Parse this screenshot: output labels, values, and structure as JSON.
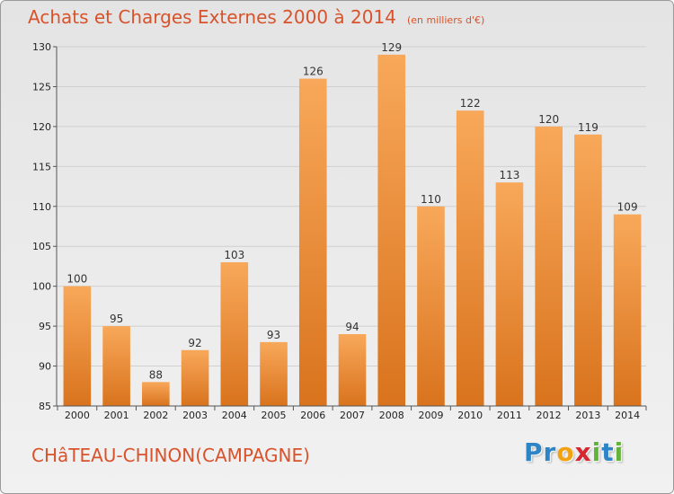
{
  "title": "Achats et Charges Externes 2000 à 2014",
  "unit": "(en milliers d'€)",
  "commune": "CHâTEAU-CHINON(CAMPAGNE)",
  "logo": {
    "letters": [
      {
        "char": "P",
        "color": "#2d84c6"
      },
      {
        "char": "r",
        "color": "#2d84c6"
      },
      {
        "char": "o",
        "color": "#f2a20f"
      },
      {
        "char": "x",
        "color": "#d6272e"
      },
      {
        "char": "i",
        "color": "#62b33a"
      },
      {
        "char": "t",
        "color": "#2d84c6"
      },
      {
        "char": "i",
        "color": "#62b33a"
      }
    ]
  },
  "colors": {
    "bar_light": "#f8a85a",
    "bar_dark": "#d9731d",
    "title": "#d8522b",
    "grid": "#d0d0d0"
  },
  "chart_data": {
    "type": "bar",
    "categories": [
      "2000",
      "2001",
      "2002",
      "2003",
      "2004",
      "2005",
      "2006",
      "2007",
      "2008",
      "2009",
      "2010",
      "2011",
      "2012",
      "2013",
      "2014"
    ],
    "values": [
      100,
      95,
      88,
      92,
      103,
      93,
      126,
      94,
      129,
      110,
      122,
      113,
      120,
      119,
      109
    ],
    "title": "Achats et Charges Externes 2000 à 2014",
    "ylim": [
      85,
      130
    ],
    "yticks": [
      85,
      90,
      95,
      100,
      105,
      110,
      115,
      120,
      125,
      130
    ],
    "grid": true,
    "legend": "none"
  }
}
